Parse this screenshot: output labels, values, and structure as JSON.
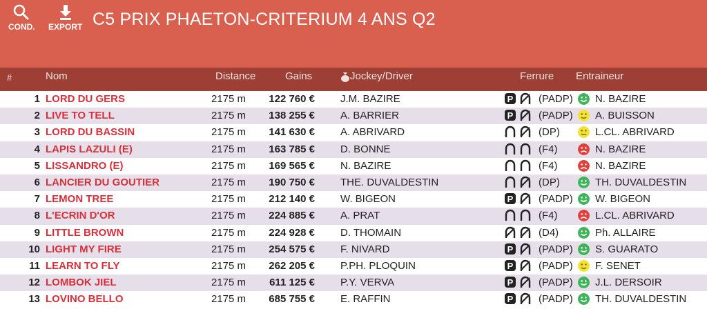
{
  "toolbar": {
    "cond_label": "COND.",
    "export_label": "EXPORT",
    "title": "C5 PRIX PHAETON-CRITERIUM 4 ANS Q2"
  },
  "columns": {
    "num": "#",
    "nom": "Nom",
    "distance": "Distance",
    "gains": "Gains",
    "jockey": "Jockey/Driver",
    "ferrure": "Ferrure",
    "entraineur": "Entraineur"
  },
  "colors": {
    "header": "#d95f4e",
    "column_bar": "#9e3f36",
    "name": "#d6303b",
    "stripe": "#e6dfea",
    "good": "#3fb55a",
    "neutral": "#f2e233",
    "bad": "#e0413b"
  },
  "rows": [
    {
      "num": "1",
      "name": "LORD DU GERS",
      "distance": "2175 m",
      "gains": "122 760 €",
      "jockey": "J.M. BAZIRE",
      "shoes": [
        "P",
        "open"
      ],
      "ferrure": "(PADP)",
      "mood": "good",
      "trainer": "N. BAZIRE"
    },
    {
      "num": "2",
      "name": "LIVE TO TELL",
      "distance": "2175 m",
      "gains": "138 255 €",
      "jockey": "A. BARRIER",
      "shoes": [
        "P",
        "open"
      ],
      "ferrure": "(PADP)",
      "mood": "neutral",
      "trainer": "A. BUISSON"
    },
    {
      "num": "3",
      "name": "LORD DU BASSIN",
      "distance": "2175 m",
      "gains": "141 630 €",
      "jockey": "A. ABRIVARD",
      "shoes": [
        "closed",
        "open"
      ],
      "ferrure": "(DP)",
      "mood": "neutral",
      "trainer": "L.CL. ABRIVARD"
    },
    {
      "num": "4",
      "name": "LAPIS LAZULI (E)",
      "distance": "2175 m",
      "gains": "163 785 €",
      "jockey": "D. BONNE",
      "shoes": [
        "closed",
        "closed"
      ],
      "ferrure": "(F4)",
      "mood": "bad",
      "trainer": "N. BAZIRE"
    },
    {
      "num": "5",
      "name": "LISSANDRO (E)",
      "distance": "2175 m",
      "gains": "169 565 €",
      "jockey": "N. BAZIRE",
      "shoes": [
        "closed",
        "closed"
      ],
      "ferrure": "(F4)",
      "mood": "bad",
      "trainer": "N. BAZIRE"
    },
    {
      "num": "6",
      "name": "LANCIER DU GOUTIER",
      "distance": "2175 m",
      "gains": "190 750 €",
      "jockey": "THE. DUVALDESTIN",
      "shoes": [
        "closed",
        "open"
      ],
      "ferrure": "(DP)",
      "mood": "good",
      "trainer": "TH. DUVALDESTIN"
    },
    {
      "num": "7",
      "name": "LEMON TREE",
      "distance": "2175 m",
      "gains": "212 140 €",
      "jockey": "W. BIGEON",
      "shoes": [
        "P",
        "open"
      ],
      "ferrure": "(PADP)",
      "mood": "good",
      "trainer": "W. BIGEON"
    },
    {
      "num": "8",
      "name": "L'ECRIN D'OR",
      "distance": "2175 m",
      "gains": "224 885 €",
      "jockey": "A. PRAT",
      "shoes": [
        "closed",
        "closed"
      ],
      "ferrure": "(F4)",
      "mood": "bad",
      "trainer": "L.CL. ABRIVARD"
    },
    {
      "num": "9",
      "name": "LITTLE BROWN",
      "distance": "2175 m",
      "gains": "224 928 €",
      "jockey": "D. THOMAIN",
      "shoes": [
        "open",
        "open"
      ],
      "ferrure": "(D4)",
      "mood": "good",
      "trainer": "Ph. ALLAIRE"
    },
    {
      "num": "10",
      "name": "LIGHT MY FIRE",
      "distance": "2175 m",
      "gains": "254 575 €",
      "jockey": "F. NIVARD",
      "shoes": [
        "P",
        "open"
      ],
      "ferrure": "(PADP)",
      "mood": "good",
      "trainer": "S. GUARATO"
    },
    {
      "num": "11",
      "name": "LEARN TO FLY",
      "distance": "2175 m",
      "gains": "262 205 €",
      "jockey": "P.PH. PLOQUIN",
      "shoes": [
        "P",
        "open"
      ],
      "ferrure": "(PADP)",
      "mood": "neutral",
      "trainer": "F. SENET"
    },
    {
      "num": "12",
      "name": "LOMBOK JIEL",
      "distance": "2175 m",
      "gains": "611 125 €",
      "jockey": "P.Y. VERVA",
      "shoes": [
        "P",
        "open"
      ],
      "ferrure": "(PADP)",
      "mood": "good",
      "trainer": "J.L. DERSOIR"
    },
    {
      "num": "13",
      "name": "LOVINO BELLO",
      "distance": "2175 m",
      "gains": "685 755 €",
      "jockey": "E. RAFFIN",
      "shoes": [
        "P",
        "open"
      ],
      "ferrure": "(PADP)",
      "mood": "good",
      "trainer": "TH. DUVALDESTIN"
    }
  ]
}
